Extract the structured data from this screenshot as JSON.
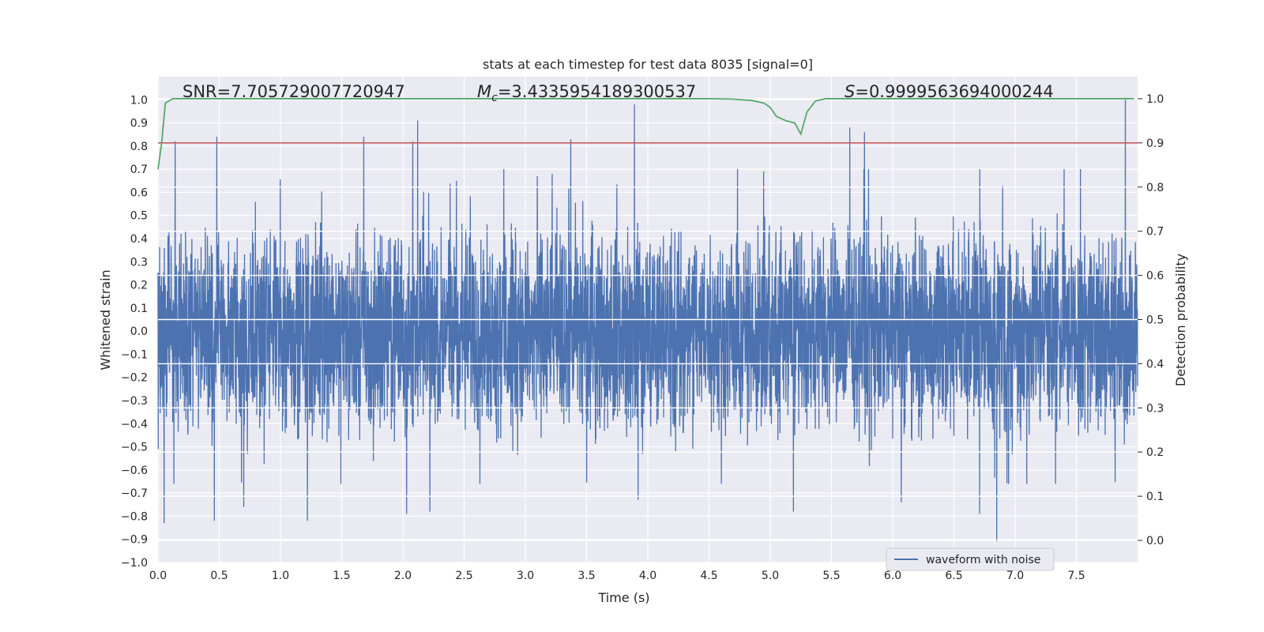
{
  "chart_data": {
    "type": "line",
    "title": "stats at each timestep for test data 8035 [signal=0]",
    "xlabel": "Time (s)",
    "ylabel_left": "Whitened strain",
    "ylabel_right": "Detection probability",
    "xlim": [
      0.0,
      8.0
    ],
    "ylim_left": [
      -1.0,
      1.1
    ],
    "ylim_right": [
      -0.05,
      1.05
    ],
    "x_ticks": [
      "0.0",
      "0.5",
      "1.0",
      "1.5",
      "2.0",
      "2.5",
      "3.0",
      "3.5",
      "4.0",
      "4.5",
      "5.0",
      "5.5",
      "6.0",
      "6.5",
      "7.0",
      "7.5"
    ],
    "y_ticks_left": [
      "−1.0",
      "−0.9",
      "−0.8",
      "−0.7",
      "−0.6",
      "−0.5",
      "−0.4",
      "−0.3",
      "−0.2",
      "−0.1",
      "0.0",
      "0.1",
      "0.2",
      "0.3",
      "0.4",
      "0.5",
      "0.6",
      "0.7",
      "0.8",
      "0.9",
      "1.0"
    ],
    "y_ticks_right": [
      "0.0",
      "0.1",
      "0.2",
      "0.3",
      "0.4",
      "0.5",
      "0.6",
      "0.7",
      "0.8",
      "0.9",
      "1.0"
    ],
    "grid": true,
    "legend": {
      "position": "bottom-right",
      "entries": [
        "waveform with noise"
      ]
    },
    "annotations": {
      "snr": "SNR=7.705729007720947",
      "mc_symbol": "M",
      "mc_sub": "c",
      "mc_value": "=3.4335954189300537",
      "s_symbol": "S",
      "s_value": "=0.9999563694000244"
    },
    "series": [
      {
        "name": "waveform with noise",
        "axis": "left",
        "kind": "dense noise",
        "x_range": [
          0.0,
          8.0
        ],
        "typical_envelope": [
          -0.45,
          0.45
        ],
        "peaks": [
          {
            "x": 0.14,
            "y": 0.82
          },
          {
            "x": 0.48,
            "y": 0.84
          },
          {
            "x": 1.68,
            "y": 0.84
          },
          {
            "x": 2.08,
            "y": 0.82
          },
          {
            "x": 2.12,
            "y": 0.91
          },
          {
            "x": 3.37,
            "y": 0.83
          },
          {
            "x": 3.89,
            "y": 0.98
          },
          {
            "x": 5.65,
            "y": 0.88
          },
          {
            "x": 5.77,
            "y": 0.86
          },
          {
            "x": 7.9,
            "y": 1.0
          }
        ],
        "troughs": [
          {
            "x": 0.05,
            "y": -0.83
          },
          {
            "x": 0.46,
            "y": -0.82
          },
          {
            "x": 0.7,
            "y": -0.76
          },
          {
            "x": 1.22,
            "y": -0.82
          },
          {
            "x": 2.03,
            "y": -0.79
          },
          {
            "x": 2.22,
            "y": -0.78
          },
          {
            "x": 3.92,
            "y": -0.73
          },
          {
            "x": 5.19,
            "y": -0.78
          },
          {
            "x": 6.07,
            "y": -0.74
          },
          {
            "x": 6.71,
            "y": -0.79
          },
          {
            "x": 6.85,
            "y": -0.91
          }
        ],
        "color": "#4c72b0"
      },
      {
        "name": "detection probability",
        "axis": "right",
        "x": [
          0.0,
          0.03,
          0.06,
          0.12,
          0.3,
          1.0,
          2.0,
          3.0,
          4.0,
          4.5,
          4.7,
          4.85,
          4.95,
          5.0,
          5.05,
          5.13,
          5.2,
          5.25,
          5.3,
          5.37,
          5.45,
          5.6,
          6.0,
          7.0,
          7.5,
          7.97
        ],
        "values": [
          0.84,
          0.9,
          0.99,
          1.0,
          1.0,
          1.0,
          1.0,
          1.0,
          1.0,
          1.0,
          0.999,
          0.996,
          0.99,
          0.98,
          0.96,
          0.95,
          0.945,
          0.92,
          0.97,
          0.995,
          1.0,
          1.0,
          1.0,
          1.0,
          1.0,
          1.0
        ],
        "color": "#55a868"
      },
      {
        "name": "threshold",
        "axis": "right",
        "kind": "horizontal line",
        "value": 0.9,
        "color": "#c44e52"
      }
    ]
  }
}
